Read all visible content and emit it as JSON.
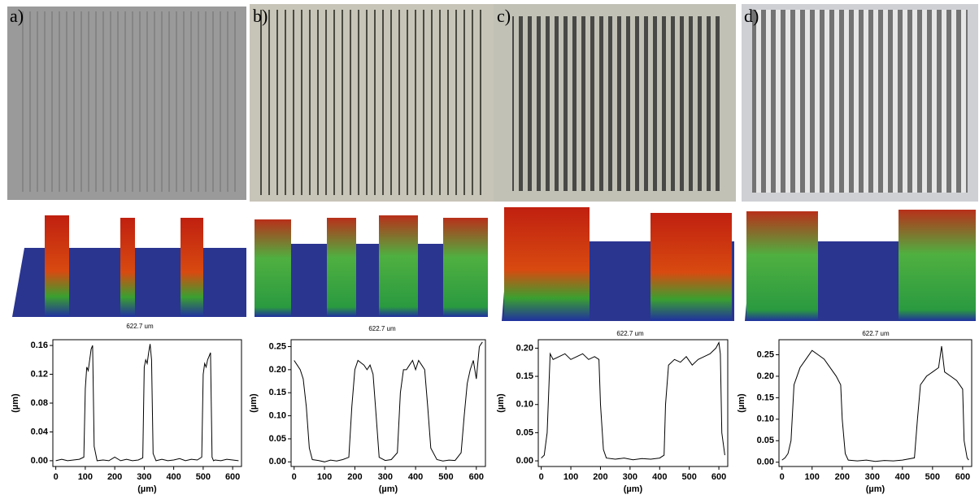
{
  "panels": [
    {
      "label": "a)",
      "scale_label": "622.7 um"
    },
    {
      "label": "b)",
      "scale_label": "622.7 um"
    },
    {
      "label": "c)",
      "scale_label": "622.7 um"
    },
    {
      "label": "d)",
      "scale_label": "622.7 um"
    }
  ],
  "chart_data": [
    {
      "type": "line",
      "xlabel": "(µm)",
      "ylabel": "(µm)",
      "x": [
        0,
        20,
        40,
        60,
        80,
        95,
        100,
        105,
        110,
        115,
        120,
        125,
        130,
        140,
        160,
        180,
        200,
        220,
        240,
        260,
        280,
        295,
        300,
        305,
        310,
        315,
        320,
        325,
        330,
        340,
        360,
        380,
        400,
        420,
        440,
        460,
        480,
        495,
        500,
        505,
        510,
        515,
        520,
        525,
        530,
        535,
        540,
        560,
        580,
        600,
        620
      ],
      "series": [
        {
          "color": "#000000",
          "values": [
            0,
            0.002,
            0,
            0.001,
            0.002,
            0.005,
            0.1,
            0.13,
            0.125,
            0.14,
            0.155,
            0.16,
            0.02,
            0,
            0.001,
            0,
            0.005,
            0,
            0.002,
            0,
            0.001,
            0.004,
            0.13,
            0.14,
            0.135,
            0.15,
            0.162,
            0.14,
            0.01,
            0,
            0.002,
            0,
            0.001,
            0.003,
            0,
            0.002,
            0.001,
            0.005,
            0.12,
            0.135,
            0.13,
            0.14,
            0.145,
            0.15,
            0.005,
            0,
            0.001,
            0,
            0.002,
            0.001,
            0
          ]
        }
      ],
      "xlim": [
        -10,
        630
      ],
      "ylim": [
        -0.008,
        0.168
      ],
      "xticks": [
        0,
        100,
        200,
        300,
        400,
        500,
        600
      ],
      "yticks": [
        {
          "value": 0,
          "label": "0.00"
        },
        0.04,
        0.08,
        0.12,
        0.16
      ]
    },
    {
      "type": "line",
      "xlabel": "(µm)",
      "ylabel": "(µm)",
      "x": [
        0,
        10,
        20,
        30,
        40,
        50,
        60,
        80,
        100,
        120,
        140,
        160,
        180,
        190,
        200,
        210,
        220,
        230,
        240,
        250,
        260,
        270,
        280,
        300,
        320,
        340,
        350,
        360,
        370,
        380,
        390,
        400,
        410,
        420,
        430,
        440,
        450,
        470,
        490,
        510,
        530,
        550,
        560,
        570,
        580,
        590,
        600,
        610,
        620
      ],
      "series": [
        {
          "color": "#000000",
          "values": [
            0.22,
            0.21,
            0.2,
            0.18,
            0.12,
            0.03,
            0.005,
            0.003,
            0,
            0.004,
            0.002,
            0.005,
            0.01,
            0.12,
            0.2,
            0.22,
            0.215,
            0.21,
            0.2,
            0.21,
            0.19,
            0.1,
            0.01,
            0.003,
            0.005,
            0.02,
            0.15,
            0.2,
            0.2,
            0.21,
            0.22,
            0.2,
            0.22,
            0.21,
            0.2,
            0.12,
            0.03,
            0.005,
            0.002,
            0.004,
            0.003,
            0.02,
            0.1,
            0.17,
            0.2,
            0.22,
            0.18,
            0.25,
            0.26
          ]
        }
      ],
      "xlim": [
        -10,
        630
      ],
      "ylim": [
        -0.01,
        0.265
      ],
      "xticks": [
        0,
        100,
        200,
        300,
        400,
        500,
        600
      ],
      "yticks": [
        {
          "value": 0,
          "label": "0.00"
        },
        0.05,
        {
          "value": 0.1,
          "label": "0.10"
        },
        0.15,
        {
          "value": 0.2,
          "label": "0.20"
        },
        0.25
      ]
    },
    {
      "type": "line",
      "xlabel": "(µm)",
      "ylabel": "(µm)",
      "x": [
        0,
        10,
        20,
        30,
        40,
        60,
        80,
        100,
        120,
        140,
        160,
        180,
        195,
        200,
        210,
        220,
        250,
        280,
        310,
        340,
        370,
        400,
        415,
        420,
        430,
        450,
        470,
        490,
        510,
        530,
        550,
        570,
        590,
        600,
        605,
        610,
        620
      ],
      "series": [
        {
          "color": "#000000",
          "values": [
            0.005,
            0.01,
            0.05,
            0.19,
            0.18,
            0.185,
            0.19,
            0.18,
            0.185,
            0.19,
            0.18,
            0.185,
            0.18,
            0.1,
            0.02,
            0.005,
            0.003,
            0.005,
            0.002,
            0.004,
            0.003,
            0.005,
            0.01,
            0.1,
            0.17,
            0.18,
            0.175,
            0.185,
            0.17,
            0.18,
            0.185,
            0.19,
            0.2,
            0.21,
            0.19,
            0.05,
            0.01
          ]
        }
      ],
      "xlim": [
        -10,
        630
      ],
      "ylim": [
        -0.01,
        0.215
      ],
      "xticks": [
        0,
        100,
        200,
        300,
        400,
        500,
        600
      ],
      "yticks": [
        {
          "value": 0,
          "label": "0.00"
        },
        0.05,
        {
          "value": 0.1,
          "label": "0.10"
        },
        0.15,
        {
          "value": 0.2,
          "label": "0.20"
        }
      ]
    },
    {
      "type": "line",
      "xlabel": "(µm)",
      "ylabel": "(µm)",
      "x": [
        0,
        10,
        20,
        30,
        40,
        60,
        80,
        100,
        120,
        140,
        160,
        180,
        195,
        200,
        210,
        220,
        250,
        280,
        310,
        340,
        370,
        400,
        440,
        450,
        460,
        480,
        500,
        520,
        530,
        540,
        560,
        580,
        600,
        605,
        615,
        620
      ],
      "series": [
        {
          "color": "#000000",
          "values": [
            0.005,
            0.01,
            0.02,
            0.05,
            0.18,
            0.22,
            0.24,
            0.26,
            0.25,
            0.24,
            0.22,
            0.2,
            0.18,
            0.1,
            0.02,
            0.005,
            0.003,
            0.005,
            0.002,
            0.004,
            0.003,
            0.005,
            0.01,
            0.1,
            0.18,
            0.2,
            0.21,
            0.22,
            0.27,
            0.21,
            0.2,
            0.19,
            0.17,
            0.05,
            0.01,
            0.005
          ]
        }
      ],
      "xlim": [
        -10,
        630
      ],
      "ylim": [
        -0.01,
        0.285
      ],
      "xticks": [
        0,
        100,
        200,
        300,
        400,
        500,
        600
      ],
      "yticks": [
        {
          "value": 0,
          "label": "0.00"
        },
        0.05,
        {
          "value": 0.1,
          "label": "0.10"
        },
        0.15,
        {
          "value": 0.2,
          "label": "0.20"
        },
        0.25
      ]
    }
  ]
}
